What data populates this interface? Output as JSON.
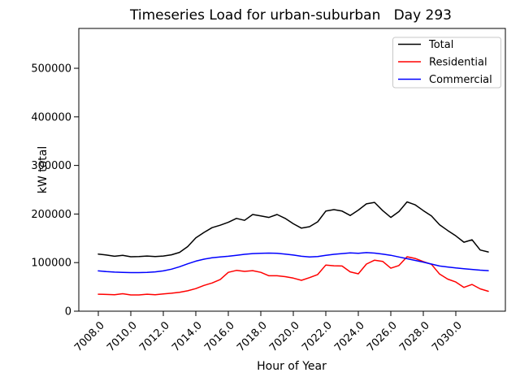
{
  "chart_data": {
    "type": "line",
    "title": "Timeseries Load for urban-suburban   Day 293",
    "xlabel": "Hour of Year",
    "ylabel": "kW total",
    "grid": false,
    "legend_position": "upper right",
    "xlim": [
      7006.8,
      7033.05
    ],
    "ylim": [
      0,
      582000
    ],
    "x_tick_values": [
      7008,
      7010,
      7012,
      7014,
      7016,
      7018,
      7020,
      7022,
      7024,
      7026,
      7028,
      7030
    ],
    "x_tick_labels": [
      "7008.0",
      "7010.0",
      "7012.0",
      "7014.0",
      "7016.0",
      "7018.0",
      "7020.0",
      "7022.0",
      "7024.0",
      "7026.0",
      "7028.0",
      "7030.0"
    ],
    "y_tick_values": [
      0,
      100000,
      200000,
      300000,
      400000,
      500000
    ],
    "y_tick_labels": [
      "0",
      "100000",
      "200000",
      "300000",
      "400000",
      "500000"
    ],
    "x": [
      7008,
      7008.5,
      7009,
      7009.5,
      7010,
      7010.5,
      7011,
      7011.5,
      7012,
      7012.5,
      7013,
      7013.5,
      7014,
      7014.5,
      7015,
      7015.5,
      7016,
      7016.5,
      7017,
      7017.5,
      7018,
      7018.5,
      7019,
      7019.5,
      7020,
      7020.5,
      7021,
      7021.5,
      7022,
      7022.5,
      7023,
      7023.5,
      7024,
      7024.5,
      7025,
      7025.5,
      7026,
      7026.5,
      7027,
      7027.5,
      7028,
      7028.5,
      7029,
      7029.5,
      7030,
      7030.5,
      7031,
      7031.5,
      7032
    ],
    "series": [
      {
        "name": "Total",
        "color": "#000000",
        "values": [
          117500,
          115500,
          113000,
          115000,
          112000,
          112500,
          113500,
          112500,
          113500,
          116000,
          121000,
          133000,
          151000,
          162000,
          172000,
          177000,
          183000,
          191000,
          187000,
          199000,
          196000,
          193000,
          199000,
          191000,
          180000,
          171000,
          174000,
          184000,
          206000,
          209000,
          206000,
          197000,
          208000,
          221000,
          224000,
          207000,
          193000,
          205000,
          225000,
          219000,
          207000,
          196000,
          178000,
          166000,
          155000,
          142000,
          147000,
          126000,
          122000
        ]
      },
      {
        "name": "Residential",
        "color": "#ff0000",
        "values": [
          35000,
          34500,
          34000,
          36000,
          33500,
          33500,
          35000,
          34000,
          35500,
          37000,
          39000,
          42000,
          46500,
          53000,
          58000,
          65000,
          80000,
          84000,
          82000,
          83500,
          80000,
          73000,
          73000,
          71000,
          68000,
          63500,
          69000,
          75500,
          95000,
          93500,
          93000,
          81000,
          77000,
          97000,
          105000,
          102500,
          88500,
          94000,
          112000,
          108500,
          102000,
          96500,
          76500,
          66000,
          60000,
          49000,
          55000,
          46000,
          41000
        ]
      },
      {
        "name": "Commercial",
        "color": "#0000ff",
        "values": [
          83000,
          81500,
          80500,
          80000,
          79500,
          79500,
          80000,
          81000,
          83000,
          86500,
          91500,
          97500,
          103000,
          107000,
          110000,
          111500,
          113000,
          115000,
          117000,
          118500,
          119000,
          119500,
          119000,
          117500,
          115500,
          113000,
          111500,
          112500,
          115000,
          117000,
          118500,
          120000,
          119000,
          120500,
          119500,
          117500,
          115000,
          111500,
          108000,
          104500,
          101000,
          97000,
          93000,
          91000,
          89000,
          87500,
          86000,
          84500,
          83500
        ]
      }
    ]
  }
}
